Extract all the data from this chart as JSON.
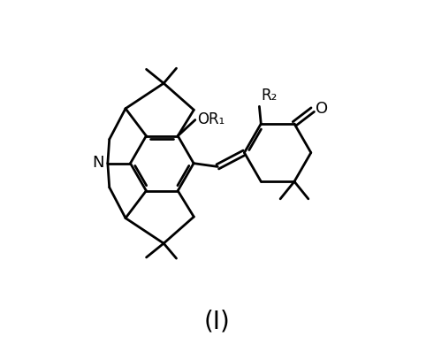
{
  "line_width": 2.0,
  "background_color": "#ffffff",
  "label_OR1": "OR₁",
  "label_R2": "R₂",
  "label_O": "O",
  "label_N": "N",
  "label_I": "(Ⅰ)"
}
